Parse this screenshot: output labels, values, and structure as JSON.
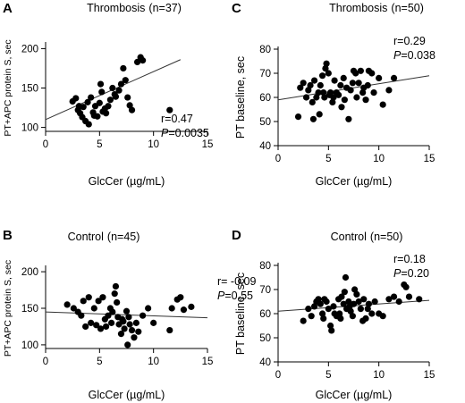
{
  "chart_data": [
    {
      "type": "scatter",
      "panel": "A",
      "title": "Thrombosis",
      "n_label": "(n=37)",
      "xlabel": "GlcCer (µg/mL)",
      "ylabel": "PT+APC protein S, sec",
      "xlim": [
        0,
        15
      ],
      "ylim": [
        95,
        205
      ],
      "xticks": [
        0,
        5,
        10,
        15
      ],
      "yticks": [
        100,
        150,
        200
      ],
      "fit": {
        "x": [
          0,
          12.5
        ],
        "y": [
          110,
          186
        ]
      },
      "r_text": "r=0.47",
      "p_label": "P",
      "p_value": "=0.0035",
      "points": [
        [
          2.5,
          133
        ],
        [
          2.8,
          137
        ],
        [
          3.0,
          122
        ],
        [
          3.1,
          127
        ],
        [
          3.2,
          118
        ],
        [
          3.4,
          113
        ],
        [
          3.5,
          126
        ],
        [
          3.7,
          108
        ],
        [
          3.9,
          132
        ],
        [
          4.0,
          104
        ],
        [
          4.2,
          138
        ],
        [
          4.4,
          119
        ],
        [
          4.5,
          115
        ],
        [
          4.6,
          127
        ],
        [
          4.8,
          114
        ],
        [
          5.0,
          131
        ],
        [
          5.1,
          155
        ],
        [
          5.2,
          145
        ],
        [
          5.3,
          120
        ],
        [
          5.5,
          124
        ],
        [
          5.6,
          118
        ],
        [
          5.8,
          127
        ],
        [
          6.0,
          135
        ],
        [
          6.2,
          150
        ],
        [
          6.4,
          142
        ],
        [
          6.5,
          139
        ],
        [
          6.8,
          147
        ],
        [
          7.0,
          155
        ],
        [
          7.2,
          175
        ],
        [
          7.4,
          160
        ],
        [
          7.6,
          138
        ],
        [
          7.8,
          128
        ],
        [
          8.0,
          122
        ],
        [
          8.5,
          183
        ],
        [
          8.8,
          189
        ],
        [
          9.0,
          185
        ],
        [
          11.5,
          122
        ]
      ]
    },
    {
      "type": "scatter",
      "panel": "B",
      "title": "Control",
      "n_label": "(n=45)",
      "xlabel": "GlcCer (µg/mL)",
      "ylabel": "PT+APC protein S, sec",
      "xlim": [
        0,
        15
      ],
      "ylim": [
        95,
        205
      ],
      "xticks": [
        0,
        5,
        10,
        15
      ],
      "yticks": [
        100,
        150,
        200
      ],
      "fit": {
        "x": [
          0,
          15
        ],
        "y": [
          145,
          137
        ]
      },
      "r_text": "r= -0.09",
      "p_label": "P",
      "p_value": "=0.55",
      "points": [
        [
          2.0,
          155
        ],
        [
          2.6,
          150
        ],
        [
          3.0,
          145
        ],
        [
          3.3,
          140
        ],
        [
          3.5,
          160
        ],
        [
          3.7,
          125
        ],
        [
          4.0,
          165
        ],
        [
          4.2,
          130
        ],
        [
          4.5,
          150
        ],
        [
          4.7,
          127
        ],
        [
          4.9,
          160
        ],
        [
          5.1,
          122
        ],
        [
          5.3,
          165
        ],
        [
          5.5,
          135
        ],
        [
          5.6,
          125
        ],
        [
          5.8,
          140
        ],
        [
          6.0,
          150
        ],
        [
          6.1,
          130
        ],
        [
          6.2,
          145
        ],
        [
          6.4,
          170
        ],
        [
          6.5,
          180
        ],
        [
          6.6,
          158
        ],
        [
          6.7,
          138
        ],
        [
          6.8,
          128
        ],
        [
          7.0,
          115
        ],
        [
          7.1,
          135
        ],
        [
          7.2,
          132
        ],
        [
          7.3,
          122
        ],
        [
          7.5,
          146
        ],
        [
          7.6,
          100
        ],
        [
          7.7,
          138
        ],
        [
          7.8,
          128
        ],
        [
          8.0,
          120
        ],
        [
          8.2,
          110
        ],
        [
          8.4,
          130
        ],
        [
          8.6,
          118
        ],
        [
          9.0,
          140
        ],
        [
          9.5,
          150
        ],
        [
          10.0,
          130
        ],
        [
          11.5,
          120
        ],
        [
          11.7,
          150
        ],
        [
          12.2,
          162
        ],
        [
          12.5,
          165
        ],
        [
          12.8,
          148
        ],
        [
          13.5,
          152
        ]
      ]
    },
    {
      "type": "scatter",
      "panel": "C",
      "title": "Thrombosis",
      "n_label": "(n=50)",
      "xlabel": "GlcCer (µg/mL)",
      "ylabel": "PT baseline, sec",
      "xlim": [
        0,
        15
      ],
      "ylim": [
        40,
        80
      ],
      "xticks": [
        0,
        5,
        10,
        15
      ],
      "yticks": [
        40,
        50,
        60,
        70,
        80
      ],
      "fit": {
        "x": [
          0,
          15
        ],
        "y": [
          59,
          69
        ]
      },
      "r_text": "r=0.29",
      "p_label": "P",
      "p_value": "=0.038",
      "points": [
        [
          2.0,
          52
        ],
        [
          2.2,
          64
        ],
        [
          2.5,
          66
        ],
        [
          2.8,
          60
        ],
        [
          3.0,
          63
        ],
        [
          3.2,
          65
        ],
        [
          3.4,
          58
        ],
        [
          3.5,
          51
        ],
        [
          3.6,
          67
        ],
        [
          3.8,
          60
        ],
        [
          4.0,
          62
        ],
        [
          4.1,
          53
        ],
        [
          4.2,
          65
        ],
        [
          4.4,
          69
        ],
        [
          4.5,
          62
        ],
        [
          4.6,
          60
        ],
        [
          4.7,
          72
        ],
        [
          4.8,
          74
        ],
        [
          5.0,
          70
        ],
        [
          5.1,
          61
        ],
        [
          5.2,
          62
        ],
        [
          5.4,
          58
        ],
        [
          5.5,
          60
        ],
        [
          5.6,
          67
        ],
        [
          5.8,
          62
        ],
        [
          6.0,
          61
        ],
        [
          6.2,
          65
        ],
        [
          6.3,
          56
        ],
        [
          6.5,
          68
        ],
        [
          6.6,
          59
        ],
        [
          6.8,
          64
        ],
        [
          7.0,
          51
        ],
        [
          7.2,
          63
        ],
        [
          7.4,
          66
        ],
        [
          7.5,
          71
        ],
        [
          7.7,
          70
        ],
        [
          7.8,
          60
        ],
        [
          8.0,
          66
        ],
        [
          8.2,
          71
        ],
        [
          8.4,
          62
        ],
        [
          8.5,
          64
        ],
        [
          8.7,
          59
        ],
        [
          8.9,
          65
        ],
        [
          9.0,
          71
        ],
        [
          9.3,
          70
        ],
        [
          9.5,
          62
        ],
        [
          10.0,
          68
        ],
        [
          10.4,
          57
        ],
        [
          11.0,
          63
        ],
        [
          11.5,
          68
        ]
      ]
    },
    {
      "type": "scatter",
      "panel": "D",
      "title": "Control",
      "n_label": "(n=50)",
      "xlabel": "GlcCer (µg/mL)",
      "ylabel": "PT baseline, sec",
      "xlim": [
        0,
        15
      ],
      "ylim": [
        40,
        80
      ],
      "xticks": [
        0,
        5,
        10,
        15
      ],
      "yticks": [
        40,
        50,
        60,
        70,
        80
      ],
      "fit": {
        "x": [
          0,
          15
        ],
        "y": [
          61,
          65.5
        ]
      },
      "r_text": "r=0.18",
      "p_label": "P",
      "p_value": "=0.20",
      "points": [
        [
          2.5,
          57
        ],
        [
          3.0,
          62
        ],
        [
          3.3,
          59
        ],
        [
          3.6,
          63
        ],
        [
          3.8,
          65
        ],
        [
          4.0,
          66
        ],
        [
          4.2,
          64
        ],
        [
          4.4,
          60
        ],
        [
          4.5,
          58
        ],
        [
          4.6,
          66
        ],
        [
          4.8,
          65
        ],
        [
          5.0,
          62
        ],
        [
          5.2,
          55
        ],
        [
          5.3,
          53
        ],
        [
          5.5,
          63
        ],
        [
          5.6,
          60
        ],
        [
          5.8,
          59
        ],
        [
          6.0,
          66
        ],
        [
          6.1,
          60
        ],
        [
          6.2,
          58
        ],
        [
          6.3,
          67
        ],
        [
          6.5,
          64
        ],
        [
          6.6,
          69
        ],
        [
          6.7,
          75
        ],
        [
          6.8,
          62
        ],
        [
          7.0,
          65
        ],
        [
          7.1,
          63
        ],
        [
          7.2,
          61
        ],
        [
          7.4,
          59
        ],
        [
          7.5,
          64
        ],
        [
          7.6,
          70
        ],
        [
          7.8,
          68
        ],
        [
          8.0,
          65
        ],
        [
          8.2,
          62
        ],
        [
          8.4,
          57
        ],
        [
          8.5,
          66
        ],
        [
          8.7,
          58
        ],
        [
          8.9,
          62
        ],
        [
          9.0,
          64
        ],
        [
          9.3,
          60
        ],
        [
          9.6,
          65
        ],
        [
          10.0,
          60
        ],
        [
          10.4,
          59
        ],
        [
          11.0,
          66
        ],
        [
          11.5,
          67
        ],
        [
          12.0,
          65
        ],
        [
          12.5,
          72
        ],
        [
          12.7,
          71
        ],
        [
          13.0,
          67
        ],
        [
          14.0,
          66
        ]
      ]
    }
  ]
}
